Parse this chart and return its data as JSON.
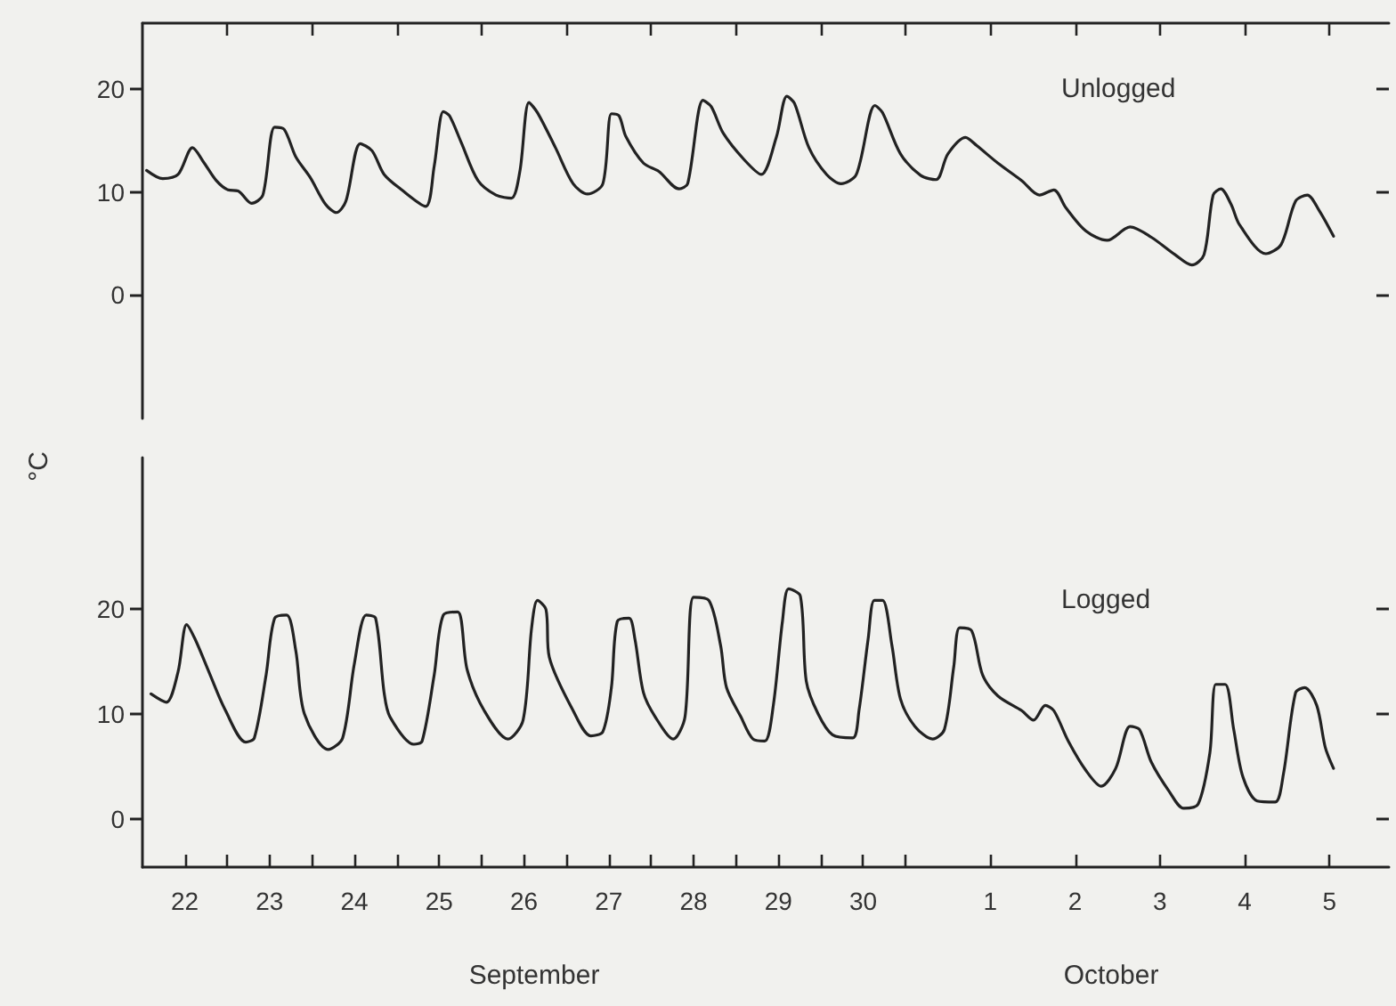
{
  "chart_data": [
    {
      "type": "line",
      "ylabel": "°C",
      "legend": false,
      "grid": false,
      "marker": "none",
      "line_style": "solid",
      "tick_labels": "y",
      "xlim": [
        "--09-21T12:00",
        "--10-06T04:50"
      ],
      "ylim": [
        -12,
        26.4
      ],
      "yticks": [
        0,
        10,
        20
      ],
      "xticks": [
        {
          "value": "--09-22T12:00",
          "label": null
        },
        {
          "value": "--09-23T12:00",
          "label": null
        },
        {
          "value": "--09-24T12:00",
          "label": null
        },
        {
          "value": "--09-25T12:00",
          "label": null
        },
        {
          "value": "--09-26T12:00",
          "label": null
        },
        {
          "value": "--09-27T12:00",
          "label": null
        },
        {
          "value": "--09-28T12:00",
          "label": null
        },
        {
          "value": "--09-29T12:00",
          "label": null
        },
        {
          "value": "--09-30T12:00",
          "label": null
        },
        {
          "value": "--10-01T12:00",
          "label": null
        },
        {
          "value": "--10-02T12:00",
          "label": null
        },
        {
          "value": "--10-03T12:00",
          "label": null
        },
        {
          "value": "--10-04T12:00",
          "label": null
        },
        {
          "value": "--10-05T12:00",
          "label": null
        }
      ],
      "series": [
        {
          "name": "Unlogged",
          "color": "#222222",
          "x": [
            "--09-21T13:10",
            "--09-21T17:45",
            "--09-21T22:05",
            "--09-22T02:10",
            "--09-22T05:30",
            "--09-22T08:55",
            "--09-22T12:15",
            "--09-22T15:05",
            "--09-22T18:55",
            "--09-22T22:05",
            "--09-23T01:25",
            "--09-23T04:05",
            "--09-23T07:25",
            "--09-23T11:30",
            "--09-23T15:50",
            "--09-23T18:55",
            "--09-23T21:35",
            "--09-24T01:40",
            "--09-24T05:00",
            "--09-24T08:25",
            "--09-24T13:25",
            "--09-24T20:10",
            "--09-24T22:35",
            "--09-25T01:10",
            "--09-25T02:55",
            "--09-25T06:15",
            "--09-25T11:00",
            "--09-25T16:05",
            "--09-25T20:25",
            "--09-25T22:50",
            "--09-26T01:25",
            "--09-26T03:50",
            "--09-26T08:55",
            "--09-26T13:55",
            "--09-26T18:00",
            "--09-26T22:20",
            "--09-27T00:45",
            "--09-27T02:55",
            "--09-27T04:50",
            "--09-27T09:50",
            "--09-27T14:10",
            "--09-27T19:55",
            "--09-27T22:20",
            "--09-28T02:40",
            "--09-28T05:00",
            "--09-28T08:25",
            "--09-28T14:25",
            "--09-28T19:10",
            "--09-28T23:30",
            "--09-29T02:25",
            "--09-29T04:35",
            "--09-29T08:40",
            "--09-29T13:40",
            "--09-29T17:45",
            "--09-29T22:05",
            "--09-30T03:20",
            "--09-30T05:30",
            "--09-30T10:35",
            "--09-30T16:20",
            "--09-30T20:40",
            "--10-01T00:00",
            "--10-01T05:00",
            "--10-01T08:10",
            "--10-01T14:10",
            "--10-01T20:55",
            "--10-02T01:55",
            "--10-02T06:00",
            "--10-02T09:20",
            "--10-02T15:05",
            "--10-02T21:05",
            "--10-03T03:35",
            "--10-03T09:35",
            "--10-03T16:20",
            "--10-03T21:05",
            "--10-04T00:30",
            "--10-04T03:05",
            "--10-04T05:15",
            "--10-04T08:10",
            "--10-04T10:35",
            "--10-04T18:00",
            "--10-04T22:20",
            "--10-05T02:25",
            "--10-05T05:45",
            "--10-05T09:05",
            "--10-05T13:10"
          ],
          "values": [
            12.1,
            11.3,
            11.7,
            14.3,
            12.8,
            11.1,
            10.2,
            10.1,
            8.9,
            9.7,
            16.3,
            16.1,
            13.4,
            11.4,
            8.8,
            8.0,
            9.1,
            14.7,
            14.0,
            11.7,
            10.2,
            8.6,
            12.5,
            17.8,
            17.4,
            14.8,
            11.1,
            9.7,
            9.4,
            12.0,
            18.7,
            17.7,
            14.3,
            10.8,
            9.8,
            10.8,
            17.6,
            17.4,
            15.4,
            12.8,
            12.0,
            10.3,
            10.8,
            18.9,
            18.3,
            15.7,
            13.1,
            11.7,
            15.4,
            19.3,
            18.6,
            14.3,
            11.7,
            10.8,
            11.7,
            18.4,
            17.7,
            13.7,
            11.6,
            11.2,
            13.7,
            15.3,
            14.5,
            12.8,
            11.1,
            9.7,
            10.2,
            8.5,
            6.2,
            5.3,
            6.6,
            5.6,
            3.9,
            2.9,
            3.9,
            9.7,
            10.3,
            8.8,
            6.8,
            4.0,
            4.9,
            9.1,
            9.7,
            8.2,
            5.7
          ]
        }
      ]
    },
    {
      "type": "line",
      "xlabel": "September",
      "annotations": [
        "October"
      ],
      "legend": false,
      "grid": false,
      "marker": "none",
      "line_style": "solid",
      "xlim": [
        "--09-21T12:00",
        "--10-06T04:50"
      ],
      "ylim": [
        -4.6,
        34.4
      ],
      "yticks": [
        0,
        10,
        20
      ],
      "xticks": [
        {
          "value": "--09-22",
          "label": "22"
        },
        {
          "value": "--09-22T12:00",
          "label": null
        },
        {
          "value": "--09-23",
          "label": "23"
        },
        {
          "value": "--09-23T12:00",
          "label": null
        },
        {
          "value": "--09-24",
          "label": "24"
        },
        {
          "value": "--09-24T12:00",
          "label": null
        },
        {
          "value": "--09-25",
          "label": "25"
        },
        {
          "value": "--09-25T12:00",
          "label": null
        },
        {
          "value": "--09-26",
          "label": "26"
        },
        {
          "value": "--09-26T12:00",
          "label": null
        },
        {
          "value": "--09-27",
          "label": "27"
        },
        {
          "value": "--09-27T12:00",
          "label": null
        },
        {
          "value": "--09-28",
          "label": "28"
        },
        {
          "value": "--09-28T12:00",
          "label": null
        },
        {
          "value": "--09-29",
          "label": "29"
        },
        {
          "value": "--09-29T12:00",
          "label": null
        },
        {
          "value": "--09-30",
          "label": "30"
        },
        {
          "value": "--09-30T12:00",
          "label": null
        },
        {
          "value": "--10-01T12:00",
          "label": "1"
        },
        {
          "value": "--10-02T12:00",
          "label": "2"
        },
        {
          "value": "--10-03T12:00",
          "label": "3"
        },
        {
          "value": "--10-04T12:00",
          "label": "4"
        },
        {
          "value": "--10-05T12:00",
          "label": "5"
        }
      ],
      "series": [
        {
          "name": "Logged",
          "color": "#222222",
          "x": [
            "--09-21T14:25",
            "--09-21T18:45",
            "--09-21T22:05",
            "--09-22T00:30",
            "--09-22T02:55",
            "--09-22T07:10",
            "--09-22T11:15",
            "--09-22T17:15",
            "--09-22T19:40",
            "--09-22T23:00",
            "--09-23T01:25",
            "--09-23T04:50",
            "--09-23T07:25",
            "--09-23T09:50",
            "--09-23T16:35",
            "--09-23T20:40",
            "--09-24T00:00",
            "--09-24T03:20",
            "--09-24T06:00",
            "--09-24T08:25",
            "--09-24T10:05",
            "--09-24T16:50",
            "--09-24T19:10",
            "--09-24T22:35",
            "--09-25T01:10",
            "--09-25T05:15",
            "--09-25T07:55",
            "--09-25T12:45",
            "--09-25T19:25",
            "--09-25T23:45",
            "--09-26T02:10",
            "--09-26T03:50",
            "--09-26T06:15",
            "--09-26T07:10",
            "--09-26T13:55",
            "--09-26T18:55",
            "--09-26T22:20",
            "--09-27T00:45",
            "--09-27T02:25",
            "--09-27T05:45",
            "--09-27T07:25",
            "--09-27T09:50",
            "--09-27T13:10",
            "--09-27T18:15",
            "--09-27T21:35",
            "--09-28T00:00",
            "--09-28T04:20",
            "--09-28T07:40",
            "--09-28T09:20",
            "--09-28T13:25",
            "--09-28T16:50",
            "--09-28T20:10",
            "--09-28T22:35",
            "--09-29T01:10",
            "--09-29T02:55",
            "--09-29T06:15",
            "--09-29T07:55",
            "--09-29T11:15",
            "--09-29T15:20",
            "--09-29T21:05",
            "--09-29T22:50",
            "--09-30T01:25",
            "--09-30T03:10",
            "--09-30T05:30",
            "--09-30T08:10",
            "--09-30T10:35",
            "--09-30T14:40",
            "--09-30T19:40",
            "--09-30T23:00",
            "--10-01T01:40",
            "--10-01T03:20",
            "--10-01T06:45",
            "--10-01T09:50",
            "--10-01T14:10",
            "--10-01T20:55",
            "--10-02T00:15",
            "--10-02T03:35",
            "--10-02T06:00",
            "--10-02T10:05",
            "--10-02T15:05",
            "--10-02T19:25",
            "--10-02T23:30",
            "--10-03T03:35",
            "--10-03T06:15",
            "--10-03T09:35",
            "--10-03T14:40",
            "--10-03T18:45",
            "--10-03T22:50",
            "--10-04T02:10",
            "--10-04T03:50",
            "--10-04T06:30",
            "--10-04T08:55",
            "--10-04T11:30",
            "--10-04T15:35",
            "--10-04T20:40",
            "--10-04T23:00",
            "--10-05T02:25",
            "--10-05T05:00",
            "--10-05T08:25",
            "--10-05T10:50",
            "--10-05T13:10"
          ],
          "values": [
            11.9,
            11.1,
            14.0,
            18.5,
            17.1,
            13.7,
            10.5,
            7.3,
            7.7,
            13.7,
            19.1,
            19.4,
            16.0,
            10.0,
            6.6,
            7.7,
            14.8,
            19.4,
            19.1,
            12.0,
            9.7,
            7.1,
            7.4,
            13.7,
            19.4,
            19.7,
            14.2,
            10.3,
            7.6,
            9.4,
            18.2,
            20.8,
            19.9,
            15.4,
            10.3,
            7.9,
            8.3,
            12.5,
            18.8,
            19.1,
            17.1,
            12.0,
            9.7,
            7.6,
            9.7,
            21.1,
            20.8,
            16.5,
            12.5,
            9.7,
            7.6,
            7.4,
            10.8,
            18.8,
            21.9,
            21.2,
            13.1,
            10.0,
            8.0,
            7.7,
            10.3,
            17.1,
            20.8,
            20.8,
            16.5,
            11.4,
            8.8,
            7.6,
            8.5,
            14.5,
            18.2,
            17.9,
            13.7,
            11.7,
            10.3,
            9.4,
            10.8,
            10.3,
            7.4,
            4.6,
            3.1,
            4.8,
            8.8,
            8.5,
            5.4,
            2.6,
            1.0,
            1.4,
            6.3,
            12.8,
            12.8,
            8.5,
            4.0,
            1.7,
            1.6,
            4.3,
            12.0,
            12.5,
            10.8,
            6.8,
            4.8
          ]
        }
      ]
    }
  ]
}
